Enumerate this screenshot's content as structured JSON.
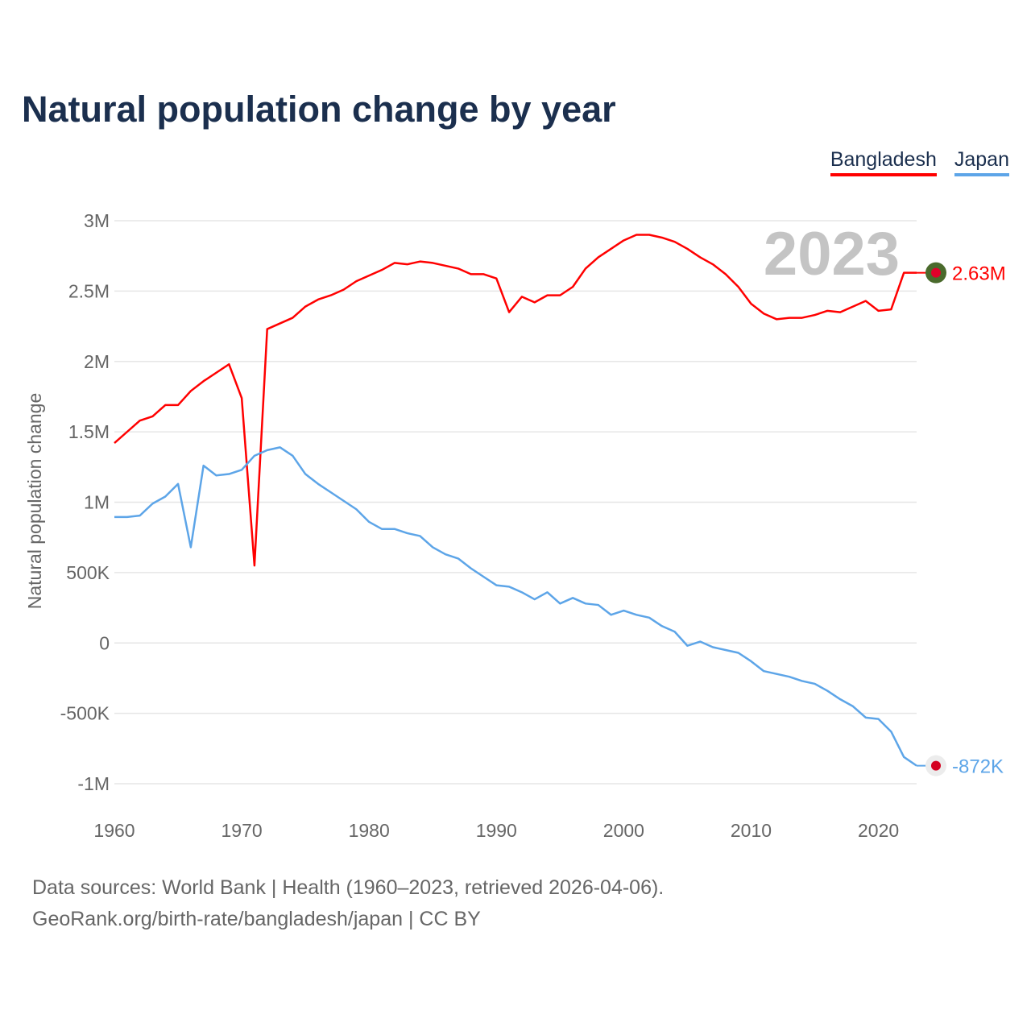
{
  "title": "Natural population change by year",
  "legend": [
    {
      "label": "Bangladesh",
      "color": "#ff0000"
    },
    {
      "label": "Japan",
      "color": "#5da5e8"
    }
  ],
  "year_watermark": "2023",
  "end_labels": {
    "bangladesh": "2.63M",
    "japan": "-872K"
  },
  "source_line1": "Data sources: World Bank | Health (1960–2023, retrieved 2026-04-06).",
  "source_line2": "GeoRank.org/birth-rate/bangladesh/japan | CC BY",
  "chart_data": {
    "type": "line",
    "title": "Natural population change by year",
    "xlabel": "",
    "ylabel": "Natural population change",
    "ylim": [
      -1000000,
      3000000
    ],
    "xlim": [
      1960,
      2023
    ],
    "y_ticks": [
      {
        "v": -1000000,
        "label": "-1M"
      },
      {
        "v": -500000,
        "label": "-500K"
      },
      {
        "v": 0,
        "label": "0"
      },
      {
        "v": 500000,
        "label": "500K"
      },
      {
        "v": 1000000,
        "label": "1M"
      },
      {
        "v": 1500000,
        "label": "1.5M"
      },
      {
        "v": 2000000,
        "label": "2M"
      },
      {
        "v": 2500000,
        "label": "2.5M"
      },
      {
        "v": 3000000,
        "label": "3M"
      }
    ],
    "x_ticks": [
      "1960",
      "1970",
      "1980",
      "1990",
      "2000",
      "2010",
      "2020"
    ],
    "grid": true,
    "legend_position": "top-right",
    "x_start": 1960,
    "series": [
      {
        "name": "Bangladesh",
        "color": "#ff0000",
        "values_millions": [
          1.42,
          1.5,
          1.58,
          1.61,
          1.69,
          1.69,
          1.79,
          1.86,
          1.92,
          1.98,
          1.74,
          0.55,
          2.23,
          2.27,
          2.31,
          2.39,
          2.44,
          2.47,
          2.51,
          2.57,
          2.61,
          2.65,
          2.7,
          2.69,
          2.71,
          2.7,
          2.68,
          2.66,
          2.62,
          2.62,
          2.59,
          2.35,
          2.46,
          2.42,
          2.47,
          2.47,
          2.53,
          2.66,
          2.74,
          2.8,
          2.86,
          2.9,
          2.9,
          2.88,
          2.85,
          2.8,
          2.74,
          2.69,
          2.62,
          2.53,
          2.41,
          2.34,
          2.3,
          2.31,
          2.31,
          2.33,
          2.36,
          2.35,
          2.39,
          2.43,
          2.36,
          2.37,
          2.63,
          2.63
        ]
      },
      {
        "name": "Japan",
        "color": "#5da5e8",
        "values_millions": [
          0.895,
          0.895,
          0.905,
          0.99,
          1.04,
          1.13,
          0.68,
          1.26,
          1.19,
          1.2,
          1.23,
          1.33,
          1.37,
          1.39,
          1.33,
          1.2,
          1.13,
          1.07,
          1.01,
          0.95,
          0.86,
          0.81,
          0.81,
          0.78,
          0.76,
          0.68,
          0.63,
          0.6,
          0.53,
          0.47,
          0.41,
          0.4,
          0.36,
          0.31,
          0.36,
          0.28,
          0.32,
          0.28,
          0.27,
          0.2,
          0.23,
          0.2,
          0.18,
          0.12,
          0.08,
          -0.02,
          0.01,
          -0.03,
          -0.05,
          -0.07,
          -0.13,
          -0.2,
          -0.22,
          -0.24,
          -0.27,
          -0.29,
          -0.34,
          -0.4,
          -0.45,
          -0.53,
          -0.54,
          -0.63,
          -0.81,
          -0.872
        ]
      }
    ]
  }
}
